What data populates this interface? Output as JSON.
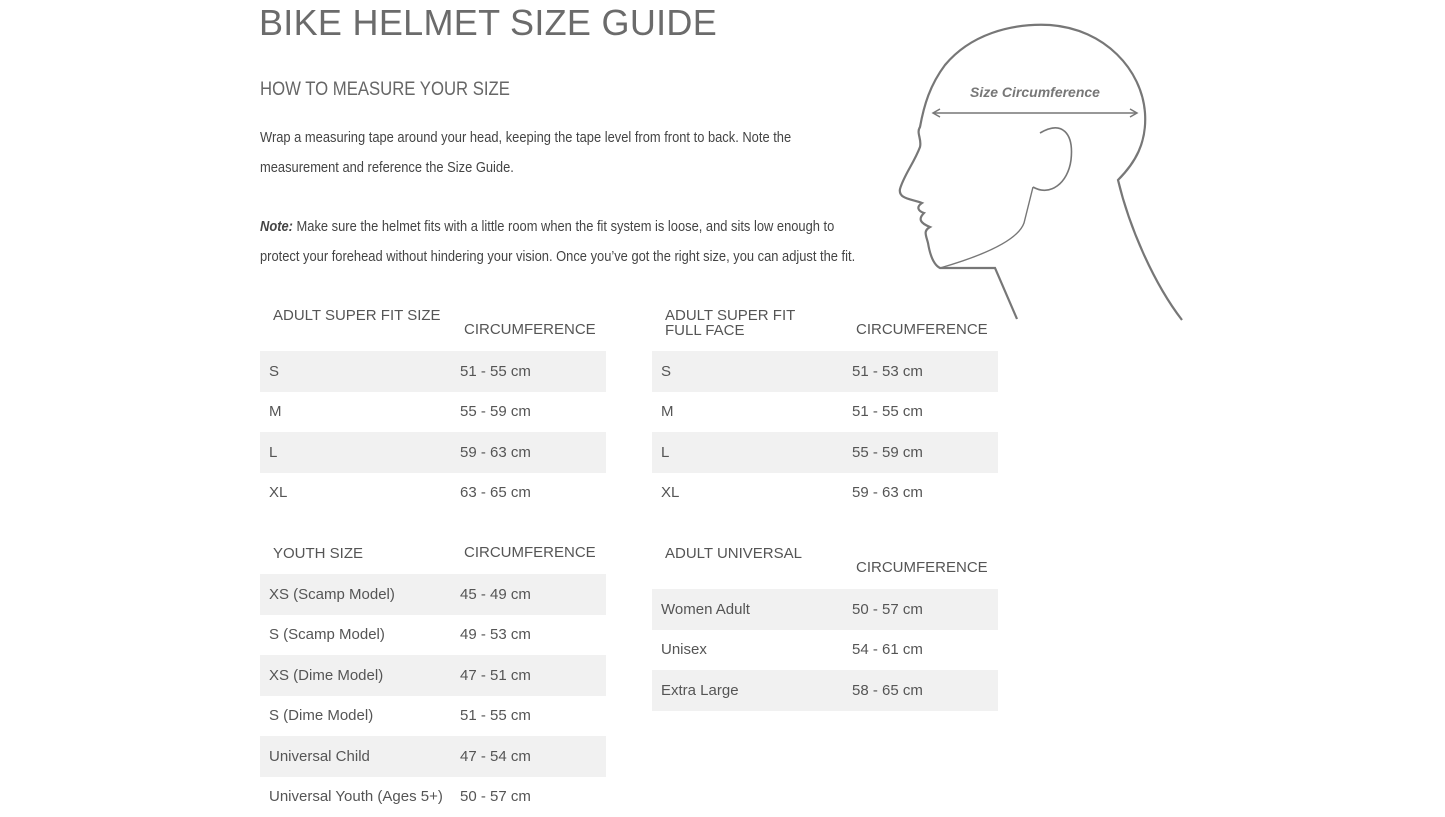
{
  "title": "BIKE HELMET SIZE GUIDE",
  "subtitle": "HOW TO MEASURE YOUR SIZE",
  "instructions": "Wrap a measuring tape around your head, keeping the tape level from front to back. Note the measurement and reference the Size Guide.",
  "note_label": "Note:",
  "note_text": " Make sure the helmet fits with a little room when the fit system is loose, and sits low enough to protect your forehead without hindering your vision. Once you’ve got the right size, you can adjust the fit.",
  "diagram": {
    "label": "Size Circumference",
    "icon": "head-profile-illustration"
  },
  "tables": [
    {
      "title": "ADULT SUPER FIT SIZE",
      "col": "CIRCUMFERENCE",
      "rows": [
        [
          "S",
          "51 - 55 cm"
        ],
        [
          "M",
          "55 - 59 cm"
        ],
        [
          "L",
          "59 - 63 cm"
        ],
        [
          "XL",
          "63 - 65 cm"
        ]
      ]
    },
    {
      "title": "ADULT SUPER FIT\nFULL FACE",
      "col": "CIRCUMFERENCE",
      "rows": [
        [
          "S",
          "51 - 53 cm"
        ],
        [
          "M",
          "51 - 55 cm"
        ],
        [
          "L",
          "55 - 59 cm"
        ],
        [
          "XL",
          "59 - 63 cm"
        ]
      ]
    },
    {
      "title": "YOUTH SIZE",
      "col": "CIRCUMFERENCE",
      "rows": [
        [
          "XS (Scamp Model)",
          "45 - 49 cm"
        ],
        [
          "S (Scamp Model)",
          "49 - 53 cm"
        ],
        [
          "XS (Dime Model)",
          "47 - 51 cm"
        ],
        [
          "S (Dime Model)",
          "51 - 55 cm"
        ],
        [
          "Universal Child",
          "47 - 54 cm"
        ],
        [
          "Universal Youth (Ages 5+)",
          "50 - 57 cm"
        ]
      ]
    },
    {
      "title": "ADULT UNIVERSAL",
      "col": "CIRCUMFERENCE",
      "rows": [
        [
          "Women Adult",
          "50 - 57 cm"
        ],
        [
          "Unisex",
          "54 - 61 cm"
        ],
        [
          "Extra Large",
          "58 - 65 cm"
        ]
      ]
    }
  ]
}
